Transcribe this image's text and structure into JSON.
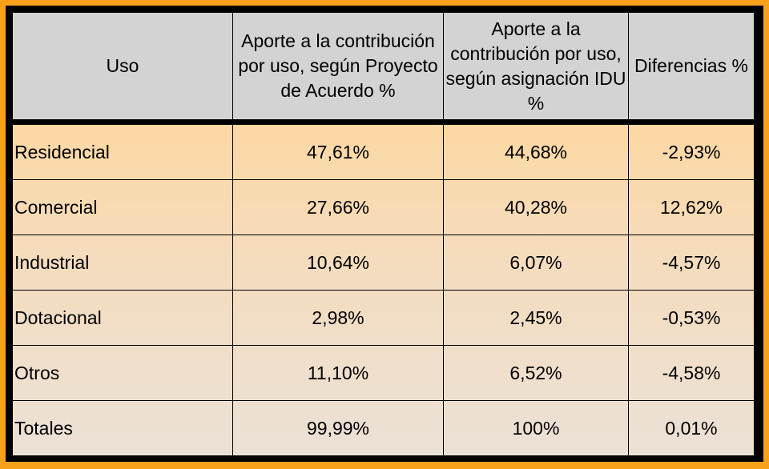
{
  "table": {
    "header": [
      "Uso",
      "Aporte a la contribución por uso, según Proyecto de Acuerdo %",
      "Aporte a la contribución por uso, según asignación IDU %",
      "Diferencias %"
    ],
    "rows": [
      [
        "Residencial",
        "47,61%",
        "44,68%",
        "-2,93%"
      ],
      [
        "Comercial",
        "27,66%",
        "40,28%",
        "12,62%"
      ],
      [
        "Industrial",
        "10,64%",
        "6,07%",
        "-4,57%"
      ],
      [
        "Dotacional",
        "2,98%",
        "2,45%",
        "-0,53%"
      ],
      [
        "Otros",
        "11,10%",
        "6,52%",
        "-4,58%"
      ],
      [
        "Totales",
        "99,99%",
        "100%",
        "0,01%"
      ]
    ]
  }
}
